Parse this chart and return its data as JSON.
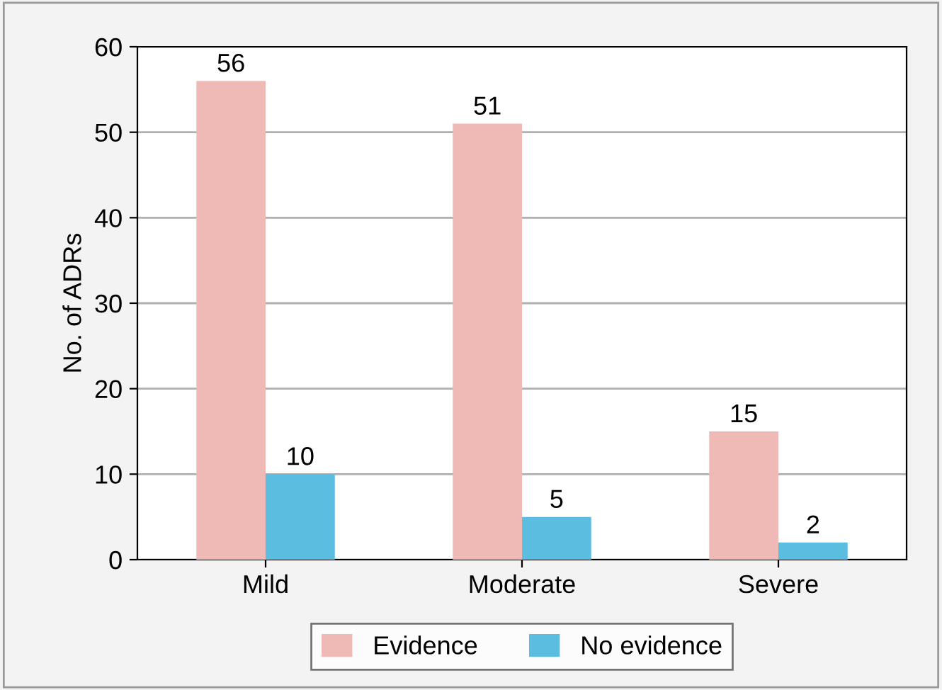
{
  "chart_data": {
    "type": "bar",
    "ylabel": "No. of ADRs",
    "categories": [
      "Mild",
      "Moderate",
      "Severe"
    ],
    "series": [
      {
        "name": "Evidence",
        "color": "#efb9b6",
        "values": [
          56,
          51,
          15
        ]
      },
      {
        "name": "No evidence",
        "color": "#5bbde0",
        "values": [
          10,
          5,
          2
        ]
      }
    ],
    "ylim": [
      0,
      60
    ],
    "yticks": [
      0,
      10,
      20,
      30,
      40,
      50,
      60
    ],
    "grid": "y",
    "legend": "bottom",
    "data_labels": true
  }
}
